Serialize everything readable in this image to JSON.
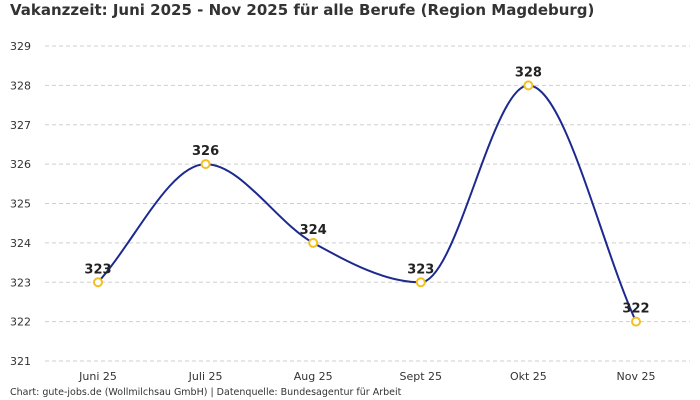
{
  "chart_data": {
    "type": "line",
    "title": "Vakanzzeit: Juni 2025 - Nov 2025 für alle Berufe (Region Magdeburg)",
    "categories": [
      "Juni 25",
      "Juli 25",
      "Aug 25",
      "Sept 25",
      "Okt 25",
      "Nov 25"
    ],
    "values": [
      323,
      326,
      324,
      323,
      328,
      322
    ],
    "data_labels": [
      "323",
      "326",
      "324",
      "323",
      "328",
      "322"
    ],
    "y_ticks": [
      "321",
      "322",
      "323",
      "324",
      "325",
      "326",
      "327",
      "328",
      "329"
    ],
    "ylim": [
      321,
      329
    ],
    "grid": true,
    "smooth": true,
    "line_color": "#1c2a8f",
    "marker_color": "#f5bf1e"
  },
  "footer": "Chart: gute-jobs.de (Wollmilchsau GmbH) | Datenquelle: Bundesagentur für Arbeit"
}
